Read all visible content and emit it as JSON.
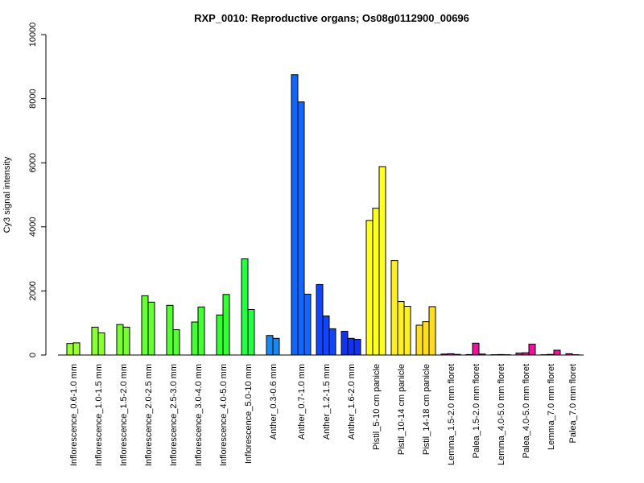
{
  "chart_data": {
    "type": "bar",
    "title": "RXP_0010: Reproductive organs; Os08g0112900_00696",
    "xlabel": "",
    "ylabel": "Cy3 signal intensity",
    "ylim": [
      0,
      10000
    ],
    "yticks": [
      0,
      2000,
      4000,
      6000,
      8000,
      10000
    ],
    "grid": false,
    "groups": [
      {
        "label": "Inflorescence_0.6-1.0 mm",
        "color": "#99ff33",
        "values": [
          360,
          380
        ]
      },
      {
        "label": "Inflorescence_1.0-1.5 mm",
        "color": "#88ff33",
        "values": [
          870,
          690
        ]
      },
      {
        "label": "Inflorescence_1.5-2.0 mm",
        "color": "#77ff33",
        "values": [
          950,
          870
        ]
      },
      {
        "label": "Inflorescence_2.0-2.5 mm",
        "color": "#66ff33",
        "values": [
          1850,
          1650
        ]
      },
      {
        "label": "Inflorescence_2.5-3.0 mm",
        "color": "#55ff33",
        "values": [
          1550,
          790
        ]
      },
      {
        "label": "Inflorescence_3.0-4.0 mm",
        "color": "#44ff33",
        "values": [
          1030,
          1500
        ]
      },
      {
        "label": "Inflorescence_4.0-5.0 mm",
        "color": "#33ff33",
        "values": [
          1250,
          1890
        ]
      },
      {
        "label": "Inflorescence_5.0-10 mm",
        "color": "#22ff44",
        "values": [
          3000,
          1420
        ]
      },
      {
        "label": "Anther_0.3-0.6 mm",
        "color": "#1a88ee",
        "values": [
          610,
          520
        ]
      },
      {
        "label": "Anther_0.7-1.0 mm",
        "color": "#1166ff",
        "values": [
          8750,
          7900,
          1900
        ]
      },
      {
        "label": "Anther_1.2-1.5 mm",
        "color": "#1144ff",
        "values": [
          2200,
          1220,
          820
        ]
      },
      {
        "label": "Anther_1.6-2.0 mm",
        "color": "#1133ee",
        "values": [
          740,
          520,
          490
        ]
      },
      {
        "label": "Pistil_5-10 cm panicle",
        "color": "#ffff22",
        "values": [
          4200,
          4580,
          5880
        ]
      },
      {
        "label": "Pistil_10-14 cm panicle",
        "color": "#ffee22",
        "values": [
          2950,
          1670,
          1520
        ]
      },
      {
        "label": "Pistil_14-18 cm panicle",
        "color": "#ffdd22",
        "values": [
          930,
          1040,
          1510
        ]
      },
      {
        "label": "Lemma_1.5-2.0 mm floret",
        "color": "#ee1199",
        "values": [
          30,
          40,
          20
        ]
      },
      {
        "label": "Palea_1.5-2.0 mm floret",
        "color": "#ee1199",
        "values": [
          15,
          370,
          30
        ]
      },
      {
        "label": "Lemma_4.0-5.0 mm floret",
        "color": "#ee1199",
        "values": [
          10,
          15,
          10
        ]
      },
      {
        "label": "Palea_4.0-5.0 mm floret",
        "color": "#ee1199",
        "values": [
          60,
          70,
          340
        ]
      },
      {
        "label": "Lemma_7.0 mm floret",
        "color": "#ee1199",
        "values": [
          10,
          20,
          150
        ]
      },
      {
        "label": "Palea_7.0 mm floret",
        "color": "#ee1199",
        "values": [
          40,
          10
        ]
      }
    ]
  }
}
